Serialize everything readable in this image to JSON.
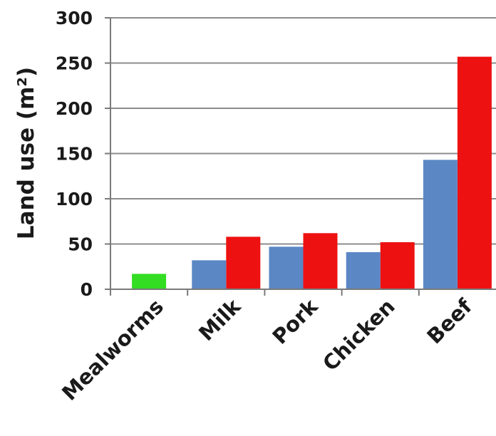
{
  "chart_data": {
    "type": "bar",
    "title": "",
    "xlabel": "",
    "ylabel": "Land use (m²)",
    "ylim": [
      0,
      300
    ],
    "yticks": [
      0,
      50,
      100,
      150,
      200,
      250,
      300
    ],
    "grid": true,
    "legend": "none",
    "categories": [
      "Mealworms",
      "Milk",
      "Pork",
      "Chicken",
      "Beef"
    ],
    "series": [
      {
        "color": "#33dd22",
        "values": [
          17,
          null,
          null,
          null,
          null
        ]
      },
      {
        "color": "#5b87c5",
        "values": [
          null,
          32,
          47,
          41,
          143
        ]
      },
      {
        "color": "#ee1111",
        "values": [
          null,
          58,
          62,
          52,
          257
        ]
      }
    ]
  }
}
